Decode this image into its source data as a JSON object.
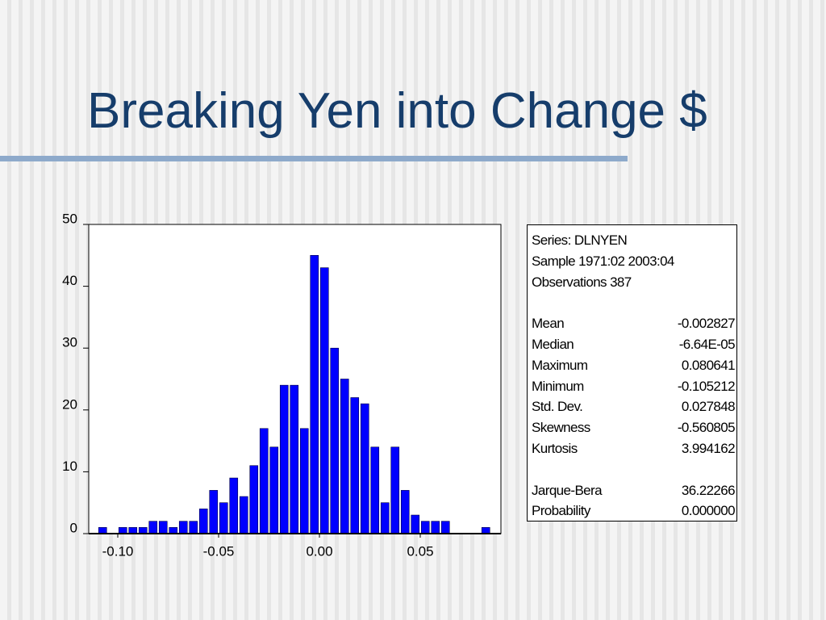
{
  "chart_data": {
    "type": "histogram",
    "title": "Breaking Yen into Change $",
    "bins": [
      -0.11,
      -0.105,
      -0.1,
      -0.095,
      -0.09,
      -0.085,
      -0.08,
      -0.075,
      -0.07,
      -0.065,
      -0.06,
      -0.055,
      -0.05,
      -0.045,
      -0.04,
      -0.035,
      -0.03,
      -0.025,
      -0.02,
      -0.015,
      -0.01,
      -0.005,
      0,
      0.005,
      0.01,
      0.015,
      0.02,
      0.025,
      0.03,
      0.035,
      0.04,
      0.045,
      0.05,
      0.055,
      0.06,
      0.065,
      0.07,
      0.075,
      0.08,
      0.085
    ],
    "counts": [
      1,
      0,
      1,
      1,
      1,
      2,
      2,
      1,
      2,
      2,
      4,
      7,
      5,
      9,
      6,
      11,
      17,
      14,
      24,
      24,
      17,
      45,
      43,
      30,
      25,
      22,
      21,
      14,
      5,
      14,
      7,
      3,
      2,
      2,
      2,
      0,
      0,
      0,
      1
    ],
    "color": "#0000ff",
    "xlim": [
      -0.1144,
      0.09
    ],
    "xticks": [
      {
        "value": -0.1,
        "label": "-0.10"
      },
      {
        "value": -0.05,
        "label": "-0.05"
      },
      {
        "value": 0,
        "label": "0.00"
      },
      {
        "value": 0.05,
        "label": "0.05"
      }
    ],
    "ylim": [
      0,
      50
    ],
    "yticks": [
      0,
      10,
      20,
      30,
      40,
      50
    ]
  },
  "stats": {
    "header": [
      "Series: DLNYEN",
      "Sample 1971:02 2003:04",
      "Observations 387"
    ],
    "moments": [
      [
        "Mean",
        "-0.002827"
      ],
      [
        "Median",
        "-6.64E-05"
      ],
      [
        "Maximum",
        "0.080641"
      ],
      [
        "Minimum",
        "-0.105212"
      ],
      [
        "Std. Dev.",
        "0.027848"
      ],
      [
        "Skewness",
        "-0.560805"
      ],
      [
        "Kurtosis",
        "3.994162"
      ]
    ],
    "tests": [
      [
        "Jarque-Bera",
        "36.22266"
      ],
      [
        "Probability",
        "0.000000"
      ]
    ]
  }
}
